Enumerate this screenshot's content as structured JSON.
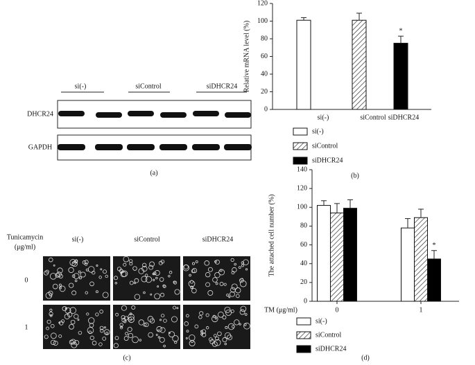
{
  "chart_data": [
    {
      "type": "bar",
      "ylabel": "Relative mRNA level (%)",
      "categories": [
        "si(-)",
        "siControl",
        "siDHCR24"
      ],
      "values": [
        101,
        101,
        75
      ],
      "errors": [
        3,
        8,
        8
      ],
      "colors": [
        "#ffffff",
        "#ffffff",
        "#000000"
      ],
      "hatched": [
        false,
        true,
        false
      ],
      "legend": [
        "si(-)",
        "siControl",
        "siDHCR24"
      ],
      "annotations": [
        {
          "text": "*",
          "category": "siDHCR24"
        }
      ],
      "ylim": [
        0,
        120
      ],
      "yticks": [
        0,
        20,
        40,
        60,
        80,
        100,
        120
      ],
      "label": "(b)"
    },
    {
      "type": "grouped-bar",
      "ylabel": "The attached cell number (%)",
      "xlabel": "TM (μg/ml)",
      "categories": [
        "0",
        "1"
      ],
      "series": [
        {
          "name": "si(-)",
          "color": "#ffffff",
          "hatched": false,
          "values": [
            102,
            78
          ],
          "errors": [
            5,
            10
          ]
        },
        {
          "name": "siControl",
          "color": "#ffffff",
          "hatched": true,
          "values": [
            94,
            89
          ],
          "errors": [
            10,
            9
          ]
        },
        {
          "name": "siDHCR24",
          "color": "#000000",
          "hatched": false,
          "values": [
            99,
            45
          ],
          "errors": [
            9,
            9
          ]
        }
      ],
      "annotations": [
        {
          "text": "*",
          "series": "siDHCR24",
          "category": "1"
        }
      ],
      "ylim": [
        0,
        140
      ],
      "yticks": [
        0,
        20,
        40,
        60,
        80,
        100,
        120,
        140
      ],
      "label": "(d)"
    }
  ],
  "blot": {
    "groups": [
      "si(-)",
      "siControl",
      "siDHCR24"
    ],
    "rows": [
      "DHCR24",
      "GAPDH"
    ],
    "label": "(a)"
  },
  "micrograph": {
    "axis_title": "Tunicamycin",
    "axis_unit": "(μg/ml)",
    "columns": [
      "si(-)",
      "siControl",
      "siDHCR24"
    ],
    "rows": [
      "0",
      "1"
    ],
    "label": "(c)"
  }
}
